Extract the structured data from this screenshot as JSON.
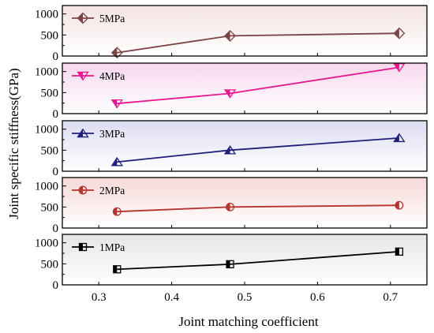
{
  "chart_data": {
    "type": "line",
    "xlabel": "Joint matching coefficient",
    "ylabel": "Joint specific stiffness(GPa)",
    "xlim": [
      0.25,
      0.75
    ],
    "x_ticks": [
      "0.3",
      "0.4",
      "0.5",
      "0.6",
      "0.7"
    ],
    "x_tick_values": [
      0.3,
      0.4,
      0.5,
      0.6,
      0.7
    ],
    "y_ticks": [
      "0",
      "500",
      "1000"
    ],
    "y_tick_values": [
      0,
      500,
      1000
    ],
    "ylim": [
      0,
      1200
    ],
    "grid": false,
    "legend_position": "top-left",
    "panels": [
      {
        "name": "5MPa",
        "color": "#7a4446",
        "marker": "diamond-half",
        "bg_top": "#f3e3e2",
        "bg_bottom": "#ffffff",
        "x": [
          0.325,
          0.48,
          0.712
        ],
        "values": [
          80,
          480,
          540
        ]
      },
      {
        "name": "4MPa",
        "color": "#e8178f",
        "marker": "triangle-down-half",
        "bg_top": "#f7d8ee",
        "bg_bottom": "#ffffff",
        "x": [
          0.325,
          0.48,
          0.712
        ],
        "values": [
          240,
          480,
          1100
        ]
      },
      {
        "name": "3MPa",
        "color": "#1f1f7a",
        "marker": "triangle-up-half",
        "bg_top": "#dcdcf2",
        "bg_bottom": "#ffffff",
        "x": [
          0.325,
          0.48,
          0.712
        ],
        "values": [
          220,
          500,
          790
        ]
      },
      {
        "name": "2MPa",
        "color": "#b5342e",
        "marker": "circle-half",
        "bg_top": "#f7d8d8",
        "bg_bottom": "#ffffff",
        "x": [
          0.325,
          0.48,
          0.712
        ],
        "values": [
          390,
          500,
          540
        ]
      },
      {
        "name": "1MPa",
        "color": "#000000",
        "marker": "square-half",
        "bg_top": "#e6e6e6",
        "bg_bottom": "#ffffff",
        "x": [
          0.325,
          0.48,
          0.712
        ],
        "values": [
          370,
          490,
          790
        ]
      }
    ]
  }
}
